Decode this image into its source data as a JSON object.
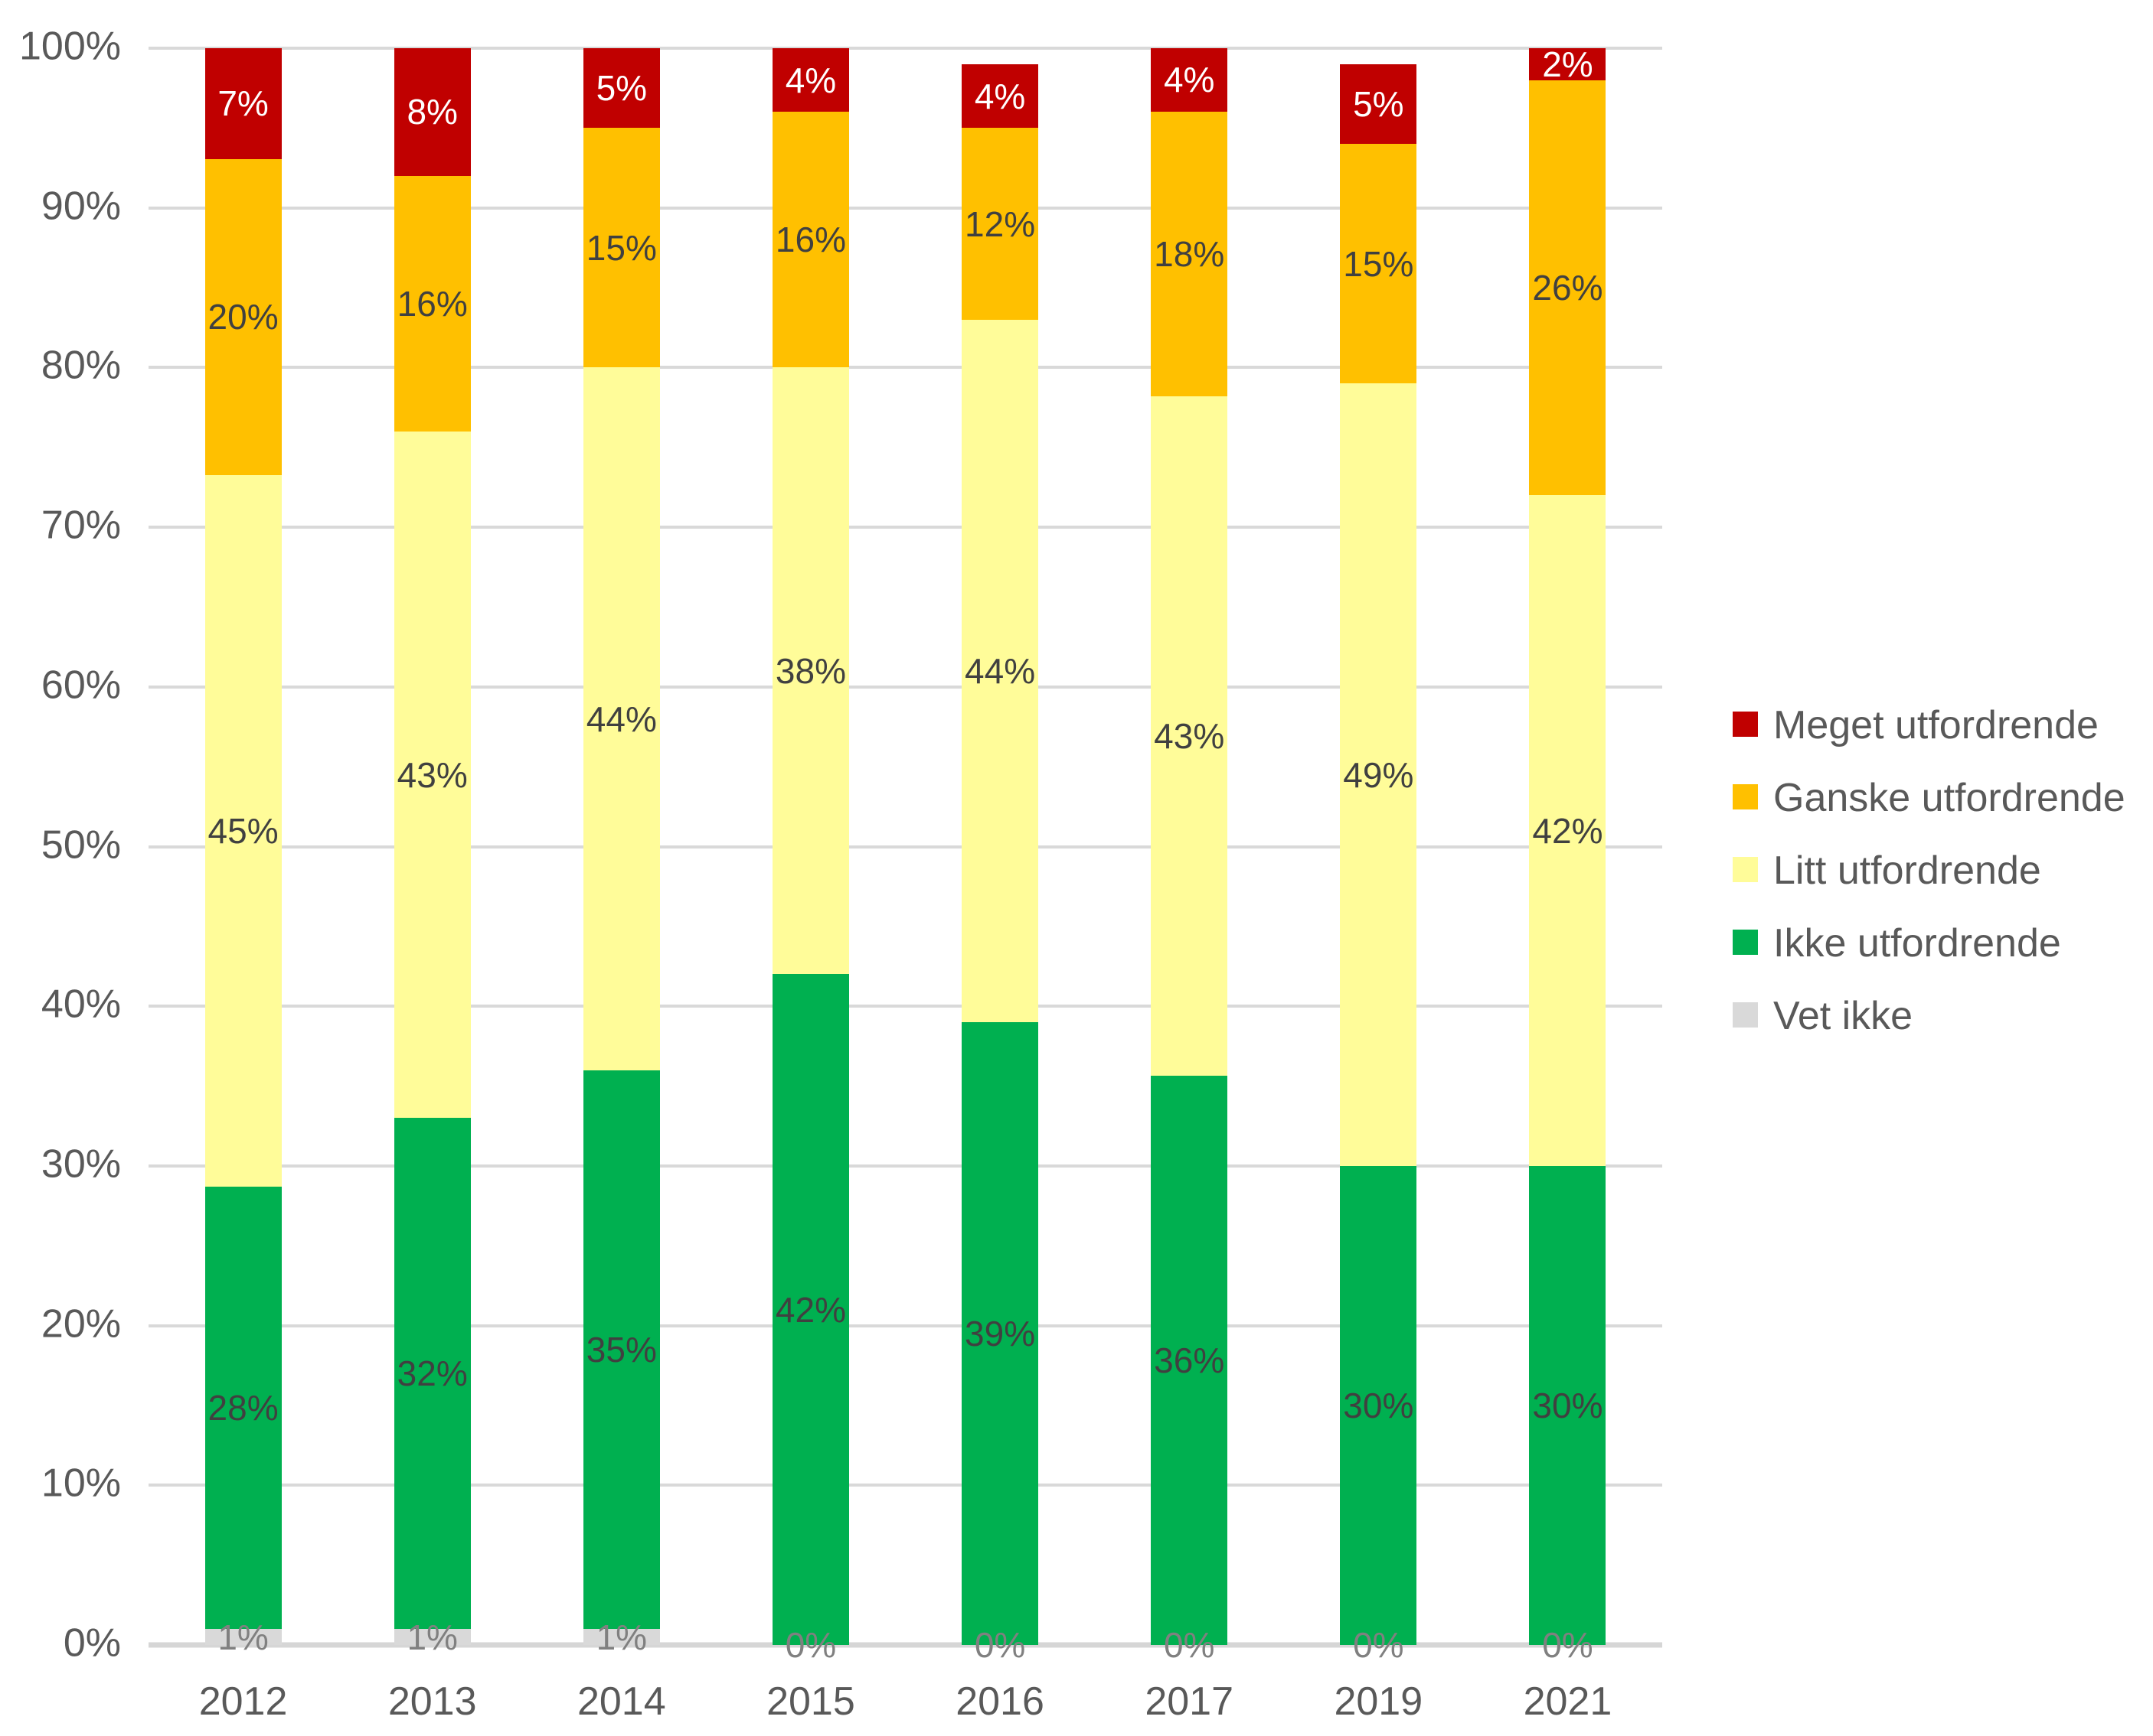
{
  "chart_data": {
    "type": "bar",
    "stacked": true,
    "orientation": "vertical",
    "title": "",
    "xlabel": "",
    "ylabel": "",
    "categories": [
      "2012",
      "2013",
      "2014",
      "2015",
      "2016",
      "2017",
      "2019",
      "2021"
    ],
    "series": [
      {
        "name": "Vet ikke",
        "color": "#D9D9D9",
        "label_color": "#808080",
        "always_label": true,
        "values": [
          1,
          1,
          1,
          0,
          0,
          0,
          0,
          0
        ]
      },
      {
        "name": "Ikke utfordrende",
        "color": "#00B050",
        "label_color": "#404040",
        "always_label": false,
        "values": [
          28,
          32,
          35,
          42,
          39,
          36,
          30,
          30
        ]
      },
      {
        "name": "Litt utfordrende",
        "color": "#FFFC99",
        "label_color": "#404040",
        "always_label": false,
        "values": [
          45,
          43,
          44,
          38,
          44,
          43,
          49,
          42
        ]
      },
      {
        "name": "Ganske utfordrende",
        "color": "#FFC000",
        "label_color": "#404040",
        "always_label": false,
        "values": [
          20,
          16,
          15,
          16,
          12,
          18,
          15,
          26
        ]
      },
      {
        "name": "Meget utfordrende",
        "color": "#C00000",
        "label_color": "#FFFFFF",
        "always_label": false,
        "values": [
          7,
          8,
          5,
          4,
          4,
          4,
          5,
          2
        ]
      }
    ],
    "value_suffix": "%",
    "y_axis": {
      "min": 0,
      "max": 100,
      "step": 10,
      "tick_suffix": "%",
      "tick_labels": [
        "0%",
        "10%",
        "20%",
        "30%",
        "40%",
        "50%",
        "60%",
        "70%",
        "80%",
        "90%",
        "100%"
      ]
    },
    "grid": true,
    "legend_position": "right",
    "legend": [
      "Meget utfordrende",
      "Ganske utfordrende",
      "Litt utfordrende",
      "Ikke utfordrende",
      "Vet ikke"
    ],
    "colors": {
      "gridline": "#D9D9D9",
      "axis_text": "#595959",
      "label_dark": "#404040",
      "label_light": "#FFFFFF",
      "label_gray": "#808080",
      "background": "#FFFFFF"
    }
  }
}
